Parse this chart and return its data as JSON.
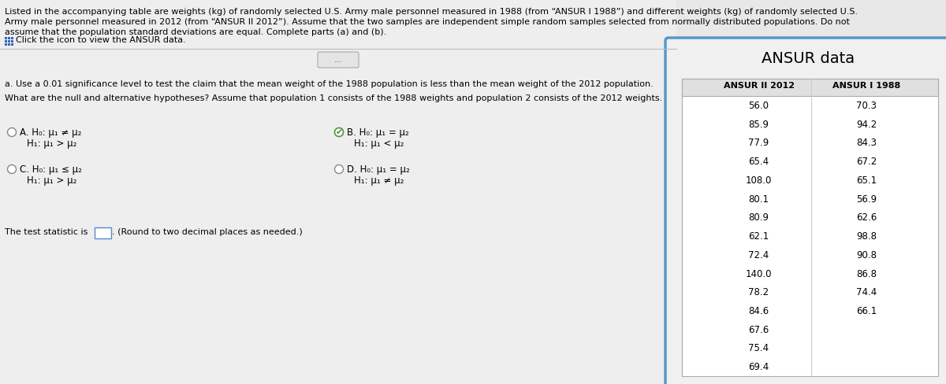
{
  "bg_color": "#d8d8d8",
  "left_panel_bg": "#e8e8e8",
  "right_panel_bg": "#f2f2f2",
  "right_panel_border": "#5599cc",
  "table_bg": "#ffffff",
  "main_text_lines": [
    "Listed in the accompanying table are weights (kg) of randomly selected U.S. Army male personnel measured in 1988 (from “ANSUR I 1988”) and different weights (kg) of randomly selected U.S.",
    "Army male personnel measured in 2012 (from “ANSUR II 2012”). Assume that the two samples are independent simple random samples selected from normally distributed populations. Do not",
    "assume that the population standard deviations are equal. Complete parts (a) and (b)."
  ],
  "click_text": "Click the icon to view the ANSUR data.",
  "part_a_text": "a. Use a 0.01 significance level to test the claim that the mean weight of the 1988 population is less than the mean weight of the 2012 population.",
  "hypotheses_text": "What are the null and alternative hypotheses? Assume that population 1 consists of the 1988 weights and population 2 consists of the 2012 weights.",
  "ansur_title": "ANSUR data",
  "col1_header": "ANSUR II 2012",
  "col2_header": "ANSUR I 1988",
  "ansur2_2012": [
    56.0,
    85.9,
    77.9,
    65.4,
    108.0,
    80.1,
    80.9,
    62.1,
    72.4,
    140.0,
    78.2,
    84.6,
    67.6,
    75.4,
    69.4
  ],
  "ansur1_1988": [
    70.3,
    94.2,
    84.3,
    67.2,
    65.1,
    56.9,
    62.6,
    98.8,
    90.8,
    86.8,
    74.4,
    66.1
  ],
  "option_A_label": "A.",
  "option_A_H0": "H₀: μ₁ ≠ μ₂",
  "option_A_H1": "H₁: μ₁ > μ₂",
  "option_B_label": "B.",
  "option_B_H0": "H₀: μ₁ = μ₂",
  "option_B_H1": "H₁: μ₁ < μ₂",
  "option_C_label": "C.",
  "option_C_H0": "H₀: μ₁ ≤ μ₂",
  "option_C_H1": "H₁: μ₁ > μ₂",
  "option_D_label": "D.",
  "option_D_H0": "H₀: μ₁ = μ₂",
  "option_D_H1": "H₁: μ₁ ≠ μ₂",
  "test_stat_pre": "The test statistic is",
  "test_stat_post": ". (Round to two decimal places as needed.)"
}
